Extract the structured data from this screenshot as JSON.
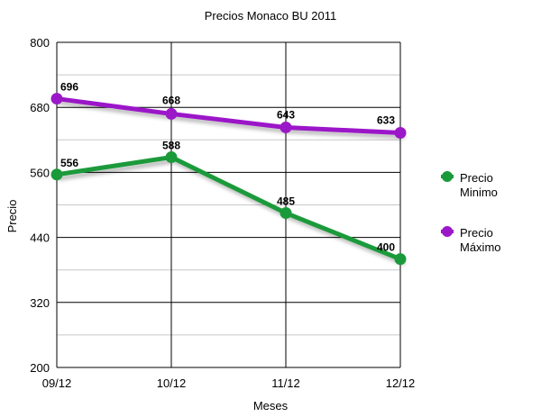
{
  "chart_data": {
    "type": "line",
    "title": "Precios Monaco BU 2011",
    "xlabel": "Meses",
    "ylabel": "Precio",
    "categories": [
      "09/12",
      "10/12",
      "11/12",
      "12/12"
    ],
    "ylim": [
      200,
      800
    ],
    "yticks": [
      200,
      320,
      440,
      560,
      680,
      800
    ],
    "grid": true,
    "legend_position": "right",
    "series": [
      {
        "name": "Precio Minimo",
        "values": [
          556,
          588,
          485,
          400
        ],
        "color": "#1a9a3a"
      },
      {
        "name": "Precio Máximo",
        "values": [
          696,
          668,
          643,
          633
        ],
        "color": "#9b18c8"
      }
    ],
    "legend": [
      {
        "line1": "Precio",
        "line2": "Minimo"
      },
      {
        "line1": "Precio",
        "line2": "Máximo"
      }
    ]
  }
}
